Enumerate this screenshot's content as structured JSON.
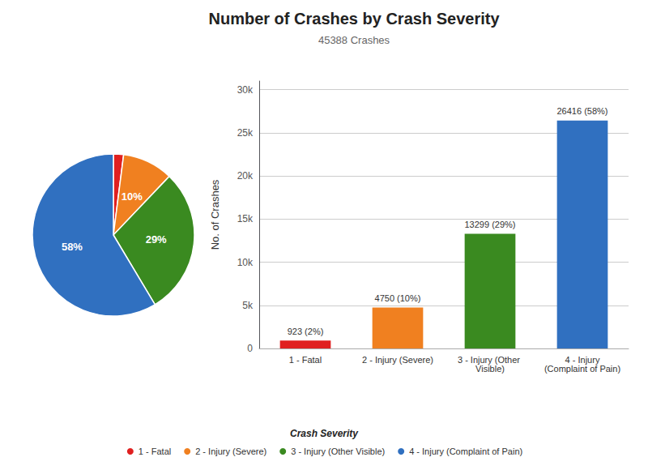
{
  "chart_data": [
    {
      "type": "pie",
      "categories": [
        "1 - Fatal",
        "2 - Injury (Severe)",
        "3 - Injury (Other Visible)",
        "4 - Injury (Complaint of Pain)"
      ],
      "values": [
        2,
        10,
        29,
        58
      ],
      "value_labels": [
        null,
        "10%",
        "29%",
        "58%"
      ],
      "data_labels": true,
      "colors": [
        "#e02020",
        "#f08020",
        "#3a8a20",
        "#3070c0"
      ],
      "legend": "bottom",
      "legend_title": "Crash Severity"
    },
    {
      "type": "bar",
      "title": "Number of Crashes by Crash Severity",
      "subtitle": "45388 Crashes",
      "categories": [
        "1 - Fatal",
        "2 - Injury (Severe)",
        "3 - Injury (Other Visible)",
        "4 - Injury\n(Complaint of Pain)"
      ],
      "values": [
        923,
        4750,
        13299,
        26416
      ],
      "value_labels": [
        "923 (2%)",
        "4750 (10%)",
        "13299 (29%)",
        "26416 (58%)"
      ],
      "data_labels": true,
      "colors": [
        "#e02020",
        "#f08020",
        "#3a8a20",
        "#3070c0"
      ],
      "ylabel": "No. of Crashes",
      "ylim": [
        0,
        31000
      ],
      "yticks": [
        0,
        {
          "value": 5000,
          "label": "5k"
        },
        {
          "value": 10000,
          "label": "10k"
        },
        {
          "value": 15000,
          "label": "15k"
        },
        {
          "value": 20000,
          "label": "20k"
        },
        {
          "value": 25000,
          "label": "25k"
        },
        {
          "value": 30000,
          "label": "30k"
        }
      ],
      "grid": true
    }
  ]
}
